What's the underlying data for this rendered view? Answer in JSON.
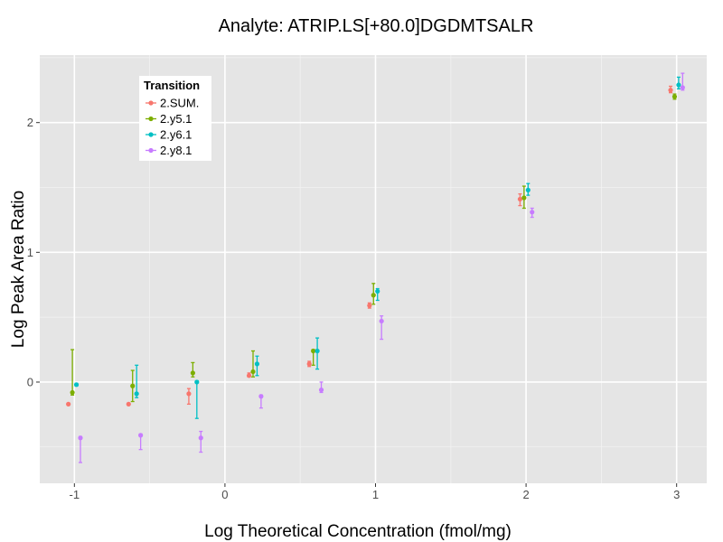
{
  "chart_data": {
    "type": "scatter",
    "title": "Analyte: ATRIP.LS[+80.0]DGDMTSALR",
    "xlabel": "Log Theoretical Concentration (fmol/mg)",
    "ylabel": "Log Peak Area Ratio",
    "xlim": [
      -1.23,
      3.2
    ],
    "ylim": [
      -0.78,
      2.52
    ],
    "x_ticks": [
      -1,
      0,
      1,
      2,
      3
    ],
    "x_tick_labels": [
      "-1",
      "0",
      "1",
      "2",
      "3"
    ],
    "y_ticks": [
      0,
      1,
      2
    ],
    "y_tick_labels": [
      "0",
      "1",
      "2"
    ],
    "grid": true,
    "legend": {
      "title": "Transition",
      "position": "top-left"
    },
    "dodge": 0.08,
    "series": [
      {
        "name": "2.SUM.",
        "color": "#F8766D",
        "points": [
          {
            "x": -1,
            "y": -0.17,
            "lo": -0.17,
            "hi": -0.17
          },
          {
            "x": -0.6,
            "y": -0.17,
            "lo": -0.17,
            "hi": -0.17
          },
          {
            "x": -0.2,
            "y": -0.09,
            "lo": -0.17,
            "hi": -0.05
          },
          {
            "x": 0.2,
            "y": 0.05,
            "lo": 0.04,
            "hi": 0.07
          },
          {
            "x": 0.6,
            "y": 0.14,
            "lo": 0.12,
            "hi": 0.16
          },
          {
            "x": 1,
            "y": 0.59,
            "lo": 0.57,
            "hi": 0.61
          },
          {
            "x": 2,
            "y": 1.41,
            "lo": 1.36,
            "hi": 1.45
          },
          {
            "x": 3,
            "y": 2.25,
            "lo": 2.23,
            "hi": 2.28
          }
        ]
      },
      {
        "name": "2.y5.1",
        "color": "#7CAE00",
        "points": [
          {
            "x": -1,
            "y": -0.08,
            "lo": -0.1,
            "hi": 0.25
          },
          {
            "x": -0.6,
            "y": -0.03,
            "lo": -0.15,
            "hi": 0.09
          },
          {
            "x": -0.2,
            "y": 0.07,
            "lo": 0.04,
            "hi": 0.15
          },
          {
            "x": 0.2,
            "y": 0.08,
            "lo": 0.04,
            "hi": 0.24
          },
          {
            "x": 0.6,
            "y": 0.24,
            "lo": 0.13,
            "hi": 0.25
          },
          {
            "x": 1,
            "y": 0.67,
            "lo": 0.6,
            "hi": 0.76
          },
          {
            "x": 2,
            "y": 1.42,
            "lo": 1.34,
            "hi": 1.51
          },
          {
            "x": 3,
            "y": 2.2,
            "lo": 2.18,
            "hi": 2.22
          }
        ]
      },
      {
        "name": "2.y6.1",
        "color": "#00BFC4",
        "points": [
          {
            "x": -1,
            "y": -0.02,
            "lo": -0.03,
            "hi": -0.01
          },
          {
            "x": -0.6,
            "y": -0.09,
            "lo": -0.12,
            "hi": 0.13
          },
          {
            "x": -0.2,
            "y": 0.0,
            "lo": -0.28,
            "hi": 0.01
          },
          {
            "x": 0.2,
            "y": 0.14,
            "lo": 0.05,
            "hi": 0.2
          },
          {
            "x": 0.6,
            "y": 0.24,
            "lo": 0.1,
            "hi": 0.34
          },
          {
            "x": 1,
            "y": 0.7,
            "lo": 0.63,
            "hi": 0.72
          },
          {
            "x": 2,
            "y": 1.48,
            "lo": 1.44,
            "hi": 1.53
          },
          {
            "x": 3,
            "y": 2.29,
            "lo": 2.26,
            "hi": 2.35
          }
        ]
      },
      {
        "name": "2.y8.1",
        "color": "#C77CFF",
        "points": [
          {
            "x": -1,
            "y": -0.43,
            "lo": -0.62,
            "hi": -0.42
          },
          {
            "x": -0.6,
            "y": -0.41,
            "lo": -0.52,
            "hi": -0.4
          },
          {
            "x": -0.2,
            "y": -0.43,
            "lo": -0.54,
            "hi": -0.38
          },
          {
            "x": 0.2,
            "y": -0.11,
            "lo": -0.2,
            "hi": -0.1
          },
          {
            "x": 0.6,
            "y": -0.06,
            "lo": -0.08,
            "hi": 0.0
          },
          {
            "x": 1,
            "y": 0.47,
            "lo": 0.33,
            "hi": 0.51
          },
          {
            "x": 2,
            "y": 1.31,
            "lo": 1.27,
            "hi": 1.34
          },
          {
            "x": 3,
            "y": 2.27,
            "lo": 2.25,
            "hi": 2.38
          }
        ]
      }
    ]
  }
}
